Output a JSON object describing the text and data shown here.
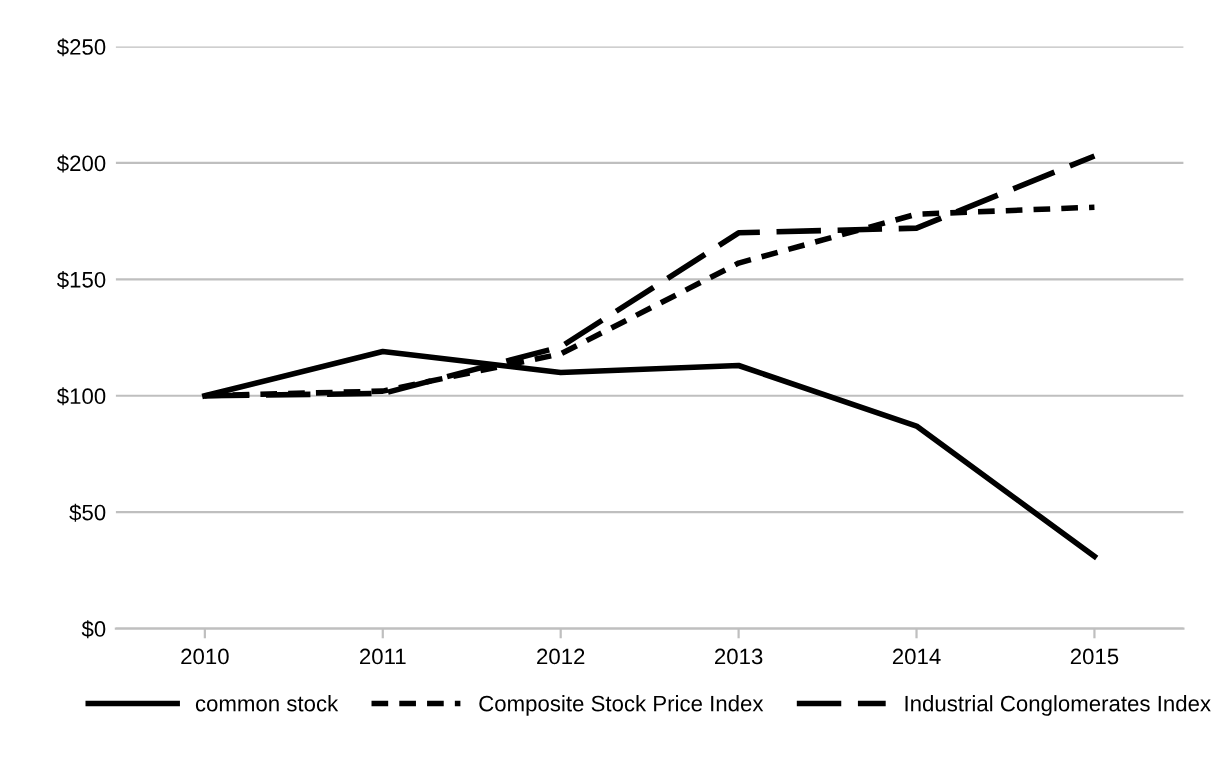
{
  "chart_data": {
    "type": "line",
    "categories": [
      "2010",
      "2011",
      "2012",
      "2013",
      "2014",
      "2015"
    ],
    "series": [
      {
        "name": "common stock",
        "color": "#000000",
        "line_style": "solid",
        "values": [
          100,
          119,
          110,
          113,
          87,
          31
        ]
      },
      {
        "name": "Composite Stock Price Index",
        "color": "#000000",
        "line_style": "dotted",
        "values": [
          100,
          102,
          118,
          157,
          178,
          181
        ]
      },
      {
        "name": "Industrial Conglomerates Index",
        "color": "#000000",
        "line_style": "dashed",
        "values": [
          100,
          101,
          121,
          170,
          172,
          203
        ]
      }
    ],
    "ylim": [
      0,
      250
    ],
    "yticks": [
      {
        "value": 0,
        "label": "$0"
      },
      {
        "value": 50,
        "label": "$50"
      },
      {
        "value": 100,
        "label": "$100"
      },
      {
        "value": 150,
        "label": "$150"
      },
      {
        "value": 200,
        "label": "$200"
      },
      {
        "value": 250,
        "label": "$250"
      }
    ],
    "grid": "y",
    "legend": "bottom",
    "marker": "none"
  }
}
